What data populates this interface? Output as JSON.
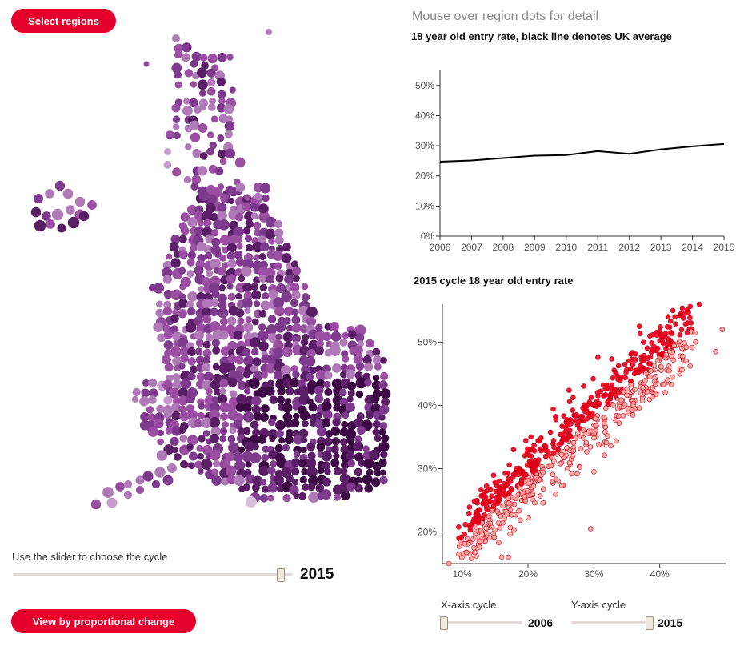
{
  "controls": {
    "select_regions_label": "Select regions",
    "proportional_label": "View by proportional change",
    "slider_label": "Use the slider to choose the cycle",
    "cycle_value": "2015",
    "cycle_fraction": 1.0,
    "x_axis_label": "X-axis cycle",
    "x_axis_value": "2006",
    "x_axis_fraction": 0.0,
    "y_axis_label": "Y-axis cycle",
    "y_axis_value": "2015",
    "y_axis_fraction": 1.0
  },
  "header": {
    "hint": "Mouse over region dots for detail"
  },
  "colors": {
    "accent": "#e4002b",
    "map_light": "#d9bedd",
    "map_mid": "#9a4fa3",
    "map_dark": "#3d0a45",
    "scatter_dark": "#e4001a",
    "scatter_light": "#f7a6a0"
  },
  "chart_data": [
    {
      "type": "line",
      "title": "18 year old entry rate, black line denotes UK average",
      "x": [
        2006,
        2007,
        2008,
        2009,
        2010,
        2011,
        2012,
        2013,
        2014,
        2015
      ],
      "series": [
        {
          "values": [
            24.7,
            25.1,
            25.9,
            26.7,
            26.9,
            28.2,
            27.3,
            28.8,
            29.8,
            30.6
          ]
        }
      ],
      "xlim": [
        2006,
        2015
      ],
      "ylim": [
        0,
        55
      ],
      "y_ticks": [
        "0%",
        "10%",
        "20%",
        "30%",
        "40%",
        "50%"
      ],
      "x_ticks": [
        "2006",
        "2007",
        "2008",
        "2009",
        "2010",
        "2011",
        "2012",
        "2013",
        "2014",
        "2015"
      ],
      "grid": false
    },
    {
      "type": "scatter",
      "title": "2015 cycle 18 year old entry rate",
      "xlim": [
        7,
        50
      ],
      "ylim": [
        15,
        56
      ],
      "x_ticks": [
        "10%",
        "20%",
        "30%",
        "40%"
      ],
      "y_ticks": [
        "20%",
        "30%",
        "40%",
        "50%"
      ],
      "trend": {
        "slope": 0.95,
        "intercept": 9.5,
        "spread": 4
      },
      "notable_points": [
        {
          "x": 8,
          "y": 15
        },
        {
          "x": 9.5,
          "y": 16.5
        },
        {
          "x": 42,
          "y": 55
        },
        {
          "x": 42.3,
          "y": 54
        },
        {
          "x": 46,
          "y": 56
        },
        {
          "x": 49.5,
          "y": 52
        },
        {
          "x": 48.5,
          "y": 48.5
        },
        {
          "x": 30,
          "y": 29.5
        },
        {
          "x": 29.5,
          "y": 20.5
        },
        {
          "x": 17,
          "y": 16
        },
        {
          "x": 41,
          "y": 48
        },
        {
          "x": 44,
          "y": 47
        }
      ]
    }
  ]
}
